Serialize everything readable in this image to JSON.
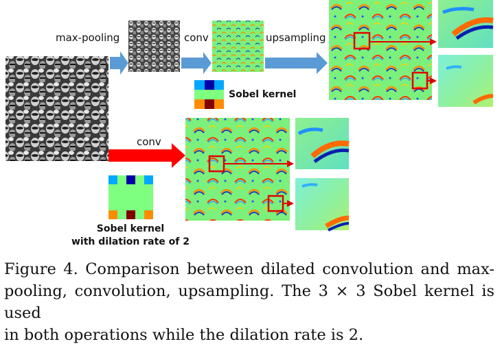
{
  "figure": {
    "labels": {
      "max_pooling": "max-pooling",
      "conv_top": "conv",
      "upsampling": "upsampling",
      "sobel_kernel": "Sobel kernel",
      "conv_bottom": "conv",
      "dilated_kernel_line1": "Sobel kernel",
      "dilated_kernel_line2": "with dilation rate of 2"
    },
    "colors": {
      "arrow_blue": "#5b9bd5",
      "arrow_red": "#ff0000",
      "highlight_box": "#e00000",
      "kernel_green": "#7fff7f",
      "kernel_blue": "#0000a8",
      "kernel_cyan": "#00a8ff",
      "kernel_orange": "#ff8c00",
      "kernel_darkred": "#800000",
      "feature_bg": "#7cf07c"
    }
  },
  "caption": {
    "text": "Figure 4. Comparison between dilated convolution and max-pooling, convolution, upsampling. The 3 × 3 Sobel kernel is used",
    "last_line": "in both operations while the dilation rate is 2."
  }
}
